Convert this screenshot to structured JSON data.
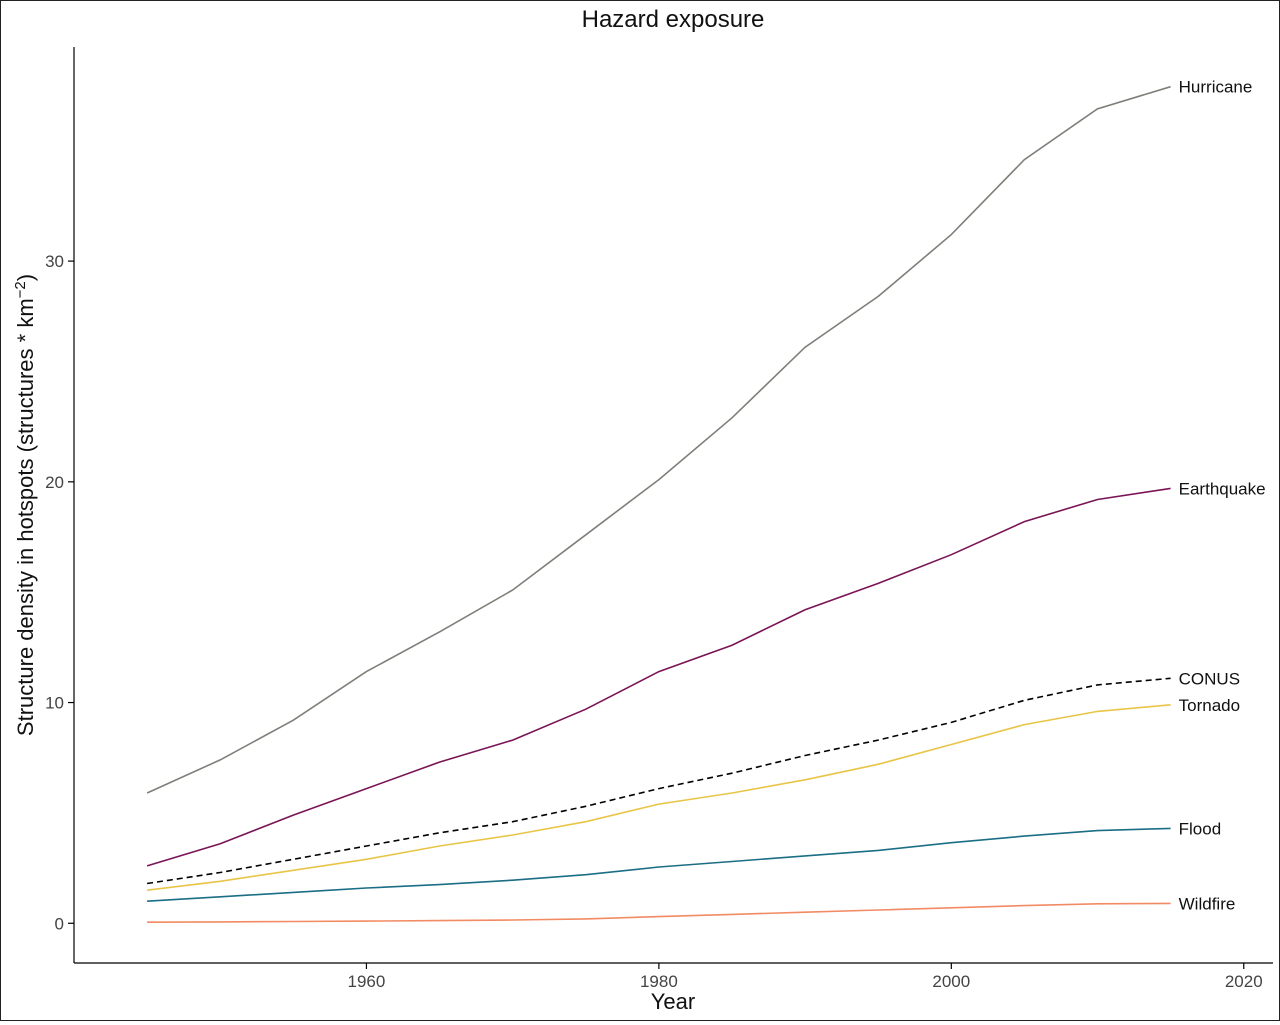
{
  "chart_data": {
    "type": "line",
    "title": "Hazard exposure",
    "xlabel": "Year",
    "ylabel": "Structure density in hotspots (structures * km",
    "ylabel_sup": "−2",
    "ylabel_close": ")",
    "xlim": [
      1940,
      2022
    ],
    "ylim": [
      -1.8,
      39.7
    ],
    "xticks": [
      1960,
      1980,
      2000,
      2020
    ],
    "yticks": [
      0,
      10,
      20,
      30
    ],
    "grid": false,
    "legend": "direct labels at line ends (right)",
    "x": [
      1945,
      1950,
      1955,
      1960,
      1965,
      1970,
      1975,
      1980,
      1985,
      1990,
      1995,
      2000,
      2005,
      2010,
      2015
    ],
    "series": [
      {
        "name": "Hurricane",
        "color": "#7f7f79",
        "dash": false,
        "values": [
          5.9,
          7.4,
          9.2,
          11.4,
          13.2,
          15.1,
          17.6,
          20.1,
          22.9,
          26.1,
          28.4,
          31.2,
          34.6,
          36.9,
          37.9
        ]
      },
      {
        "name": "Earthquake",
        "color": "#7a1455",
        "dash": false,
        "values": [
          2.6,
          3.6,
          4.9,
          6.1,
          7.3,
          8.3,
          9.7,
          11.4,
          12.6,
          14.2,
          15.4,
          16.7,
          18.2,
          19.2,
          19.7
        ]
      },
      {
        "name": "CONUS",
        "color": "#000000",
        "dash": true,
        "values": [
          1.8,
          2.3,
          2.9,
          3.5,
          4.1,
          4.6,
          5.3,
          6.1,
          6.8,
          7.6,
          8.3,
          9.1,
          10.1,
          10.8,
          11.1
        ]
      },
      {
        "name": "Tornado",
        "color": "#e8c547",
        "dash": false,
        "values": [
          1.5,
          1.9,
          2.4,
          2.9,
          3.5,
          4.0,
          4.6,
          5.4,
          5.9,
          6.5,
          7.2,
          8.1,
          9.0,
          9.6,
          9.9
        ]
      },
      {
        "name": "Flood",
        "color": "#1b6e85",
        "dash": false,
        "values": [
          1.0,
          1.2,
          1.4,
          1.6,
          1.75,
          1.95,
          2.2,
          2.55,
          2.8,
          3.05,
          3.3,
          3.65,
          3.95,
          4.2,
          4.3
        ]
      },
      {
        "name": "Wildfire",
        "color": "#f28b64",
        "dash": false,
        "values": [
          0.05,
          0.06,
          0.08,
          0.1,
          0.12,
          0.15,
          0.2,
          0.3,
          0.4,
          0.5,
          0.6,
          0.7,
          0.8,
          0.88,
          0.9
        ]
      }
    ]
  }
}
